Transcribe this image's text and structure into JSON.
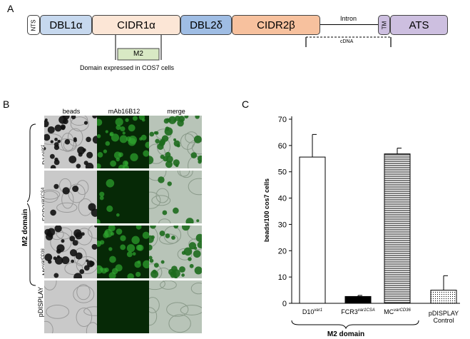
{
  "panels": {
    "a": "A",
    "b": "B",
    "c": "C"
  },
  "schematic": {
    "domains": [
      "NTS",
      "DBL1α",
      "CIDR1α",
      "DBL2δ",
      "CIDR2β",
      "TM",
      "ATS"
    ],
    "intron_label": "Intron",
    "cdna_label": "cDNA",
    "m2_label": "M2",
    "m2_caption": "Domain expressed in COS7 cells"
  },
  "micrographs": {
    "columns": [
      "beads",
      "mAb16B12",
      "merge"
    ],
    "side_label": "M2 domain",
    "rows": [
      {
        "name": "D10",
        "sup": "var1"
      },
      {
        "name": "FCR3",
        "sup": "var1CSA"
      },
      {
        "name": "MC",
        "sup": "varCD36"
      },
      {
        "name": "pDISPLAY Control",
        "sup": ""
      }
    ]
  },
  "chart_data": {
    "type": "bar",
    "ylabel": "beads/100 cos7 cells",
    "ylim": [
      0,
      70
    ],
    "yticks": [
      0,
      10,
      20,
      30,
      40,
      50,
      60,
      70
    ],
    "categories": [
      {
        "name": "D10",
        "sup": "var1"
      },
      {
        "name": "FCR3",
        "sup": "var1CSA"
      },
      {
        "name": "MC",
        "sup": "varCD36"
      },
      {
        "name": "pDISPLAY Control",
        "sup": ""
      }
    ],
    "values": [
      55.6,
      2.6,
      56.8,
      5.0
    ],
    "errors": [
      8.6,
      0.4,
      2.2,
      5.5
    ],
    "fills": [
      "white",
      "black",
      "horizontal-lines",
      "dots"
    ],
    "group_label": "M2 domain"
  }
}
